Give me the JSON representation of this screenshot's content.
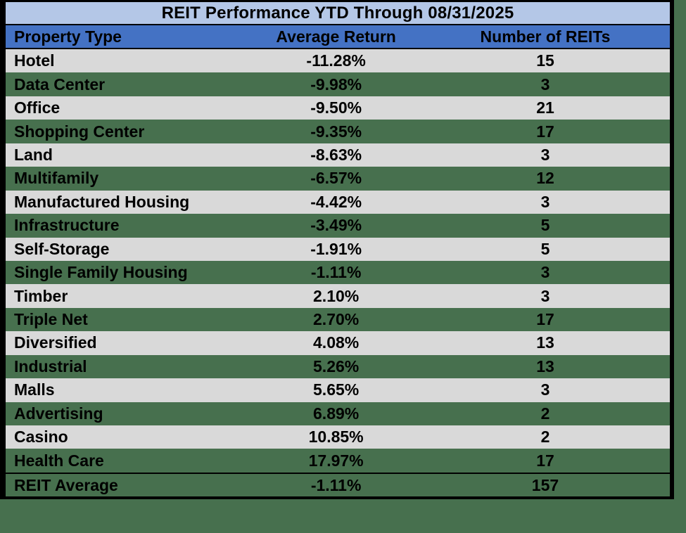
{
  "table": {
    "title": "REIT Performance YTD Through 08/31/2025",
    "columns": [
      "Property Type",
      "Average Return",
      "Number of REITs"
    ],
    "rows": [
      [
        "Hotel",
        "-11.28%",
        "15"
      ],
      [
        "Data Center",
        "-9.98%",
        "3"
      ],
      [
        "Office",
        "-9.50%",
        "21"
      ],
      [
        "Shopping Center",
        "-9.35%",
        "17"
      ],
      [
        "Land",
        "-8.63%",
        "3"
      ],
      [
        "Multifamily",
        "-6.57%",
        "12"
      ],
      [
        "Manufactured Housing",
        "-4.42%",
        "3"
      ],
      [
        "Infrastructure",
        "-3.49%",
        "5"
      ],
      [
        "Self-Storage",
        "-1.91%",
        "5"
      ],
      [
        "Single Family Housing",
        "-1.11%",
        "3"
      ],
      [
        "Timber",
        "2.10%",
        "3"
      ],
      [
        "Triple Net",
        "2.70%",
        "17"
      ],
      [
        "Diversified",
        "4.08%",
        "13"
      ],
      [
        "Industrial",
        "5.26%",
        "13"
      ],
      [
        "Malls",
        "5.65%",
        "3"
      ],
      [
        "Advertising",
        "6.89%",
        "2"
      ],
      [
        "Casino",
        "10.85%",
        "2"
      ],
      [
        "Health Care",
        "17.97%",
        "17"
      ]
    ],
    "summary_row": [
      "REIT Average",
      "-1.11%",
      "157"
    ]
  },
  "colors": {
    "page_background": "#47704E",
    "title_background": "#b4c7e7",
    "header_background": "#4472c4",
    "row_gray": "#d9d9d9",
    "row_green": "#47704E",
    "border": "#000000",
    "text": "#000000"
  },
  "chart_data": {
    "type": "table",
    "title": "REIT Performance YTD Through 08/31/2025",
    "columns": [
      "Property Type",
      "Average Return (%)",
      "Number of REITs"
    ],
    "rows": [
      [
        "Hotel",
        -11.28,
        15
      ],
      [
        "Data Center",
        -9.98,
        3
      ],
      [
        "Office",
        -9.5,
        21
      ],
      [
        "Shopping Center",
        -9.35,
        17
      ],
      [
        "Land",
        -8.63,
        3
      ],
      [
        "Multifamily",
        -6.57,
        12
      ],
      [
        "Manufactured Housing",
        -4.42,
        3
      ],
      [
        "Infrastructure",
        -3.49,
        5
      ],
      [
        "Self-Storage",
        -1.91,
        5
      ],
      [
        "Single Family Housing",
        -1.11,
        3
      ],
      [
        "Timber",
        2.1,
        3
      ],
      [
        "Triple Net",
        2.7,
        17
      ],
      [
        "Diversified",
        4.08,
        13
      ],
      [
        "Industrial",
        5.26,
        13
      ],
      [
        "Malls",
        5.65,
        3
      ],
      [
        "Advertising",
        6.89,
        2
      ],
      [
        "Casino",
        10.85,
        2
      ],
      [
        "Health Care",
        17.97,
        17
      ]
    ],
    "summary": [
      "REIT Average",
      -1.11,
      157
    ],
    "units": {
      "average_return": "percent"
    },
    "layout": {
      "row_striping": [
        "gray",
        "green"
      ],
      "column_alignment": [
        "left",
        "center",
        "center"
      ]
    }
  }
}
